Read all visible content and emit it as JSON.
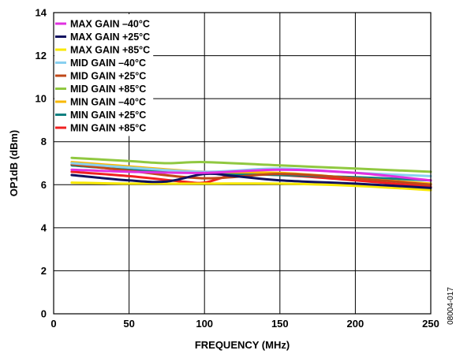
{
  "chart_data": {
    "type": "line",
    "xlabel": "FREQUENCY (MHz)",
    "ylabel": "OP1dB (dBm)",
    "xlim": [
      0,
      250
    ],
    "ylim": [
      0,
      14
    ],
    "xticks": [
      0,
      50,
      100,
      150,
      200,
      250
    ],
    "yticks": [
      0,
      2,
      4,
      6,
      8,
      10,
      12,
      14
    ],
    "grid": true,
    "legend_position": "top-left",
    "figure_code": "08004-017",
    "series": [
      {
        "name": "MAX GAIN –40°C",
        "color": "#e030e0",
        "x": [
          12,
          50,
          100,
          150,
          200,
          250
        ],
        "y": [
          6.7,
          6.6,
          6.55,
          6.7,
          6.55,
          6.2
        ]
      },
      {
        "name": "MAX GAIN +25°C",
        "color": "#101060",
        "x": [
          12,
          50,
          75,
          100,
          120,
          150,
          200,
          250
        ],
        "y": [
          6.45,
          6.2,
          6.15,
          6.5,
          6.4,
          6.2,
          6.05,
          5.85
        ]
      },
      {
        "name": "MAX GAIN +85°C",
        "color": "#f8e800",
        "x": [
          12,
          50,
          100,
          150,
          200,
          250
        ],
        "y": [
          6.1,
          6.05,
          6.05,
          6.05,
          5.95,
          5.75
        ]
      },
      {
        "name": "MID GAIN –40°C",
        "color": "#88d0f0",
        "x": [
          12,
          50,
          100,
          150,
          200,
          250
        ],
        "y": [
          7.0,
          6.8,
          6.6,
          6.75,
          6.55,
          6.4
        ]
      },
      {
        "name": "MID GAIN +25°C",
        "color": "#c04818",
        "x": [
          12,
          50,
          100,
          150,
          200,
          250
        ],
        "y": [
          6.95,
          6.65,
          6.3,
          6.5,
          6.3,
          6.0
        ]
      },
      {
        "name": "MID GAIN +85°C",
        "color": "#90c840",
        "x": [
          12,
          50,
          75,
          100,
          150,
          200,
          250
        ],
        "y": [
          7.25,
          7.1,
          7.0,
          7.05,
          6.9,
          6.75,
          6.6
        ]
      },
      {
        "name": "MIN GAIN –40°C",
        "color": "#f8b800",
        "x": [
          12,
          50,
          100,
          150,
          200,
          250
        ],
        "y": [
          7.05,
          6.85,
          6.6,
          6.55,
          6.3,
          6.05
        ]
      },
      {
        "name": "MIN GAIN +25°C",
        "color": "#108080",
        "x": [
          12,
          50,
          100,
          150,
          200,
          250
        ],
        "y": [
          6.9,
          6.7,
          6.55,
          6.45,
          6.35,
          6.2
        ]
      },
      {
        "name": "MIN GAIN +85°C",
        "color": "#f02020",
        "x": [
          12,
          50,
          85,
          100,
          120,
          150,
          200,
          250
        ],
        "y": [
          6.6,
          6.4,
          6.15,
          6.1,
          6.45,
          6.45,
          6.2,
          5.9
        ]
      }
    ]
  }
}
